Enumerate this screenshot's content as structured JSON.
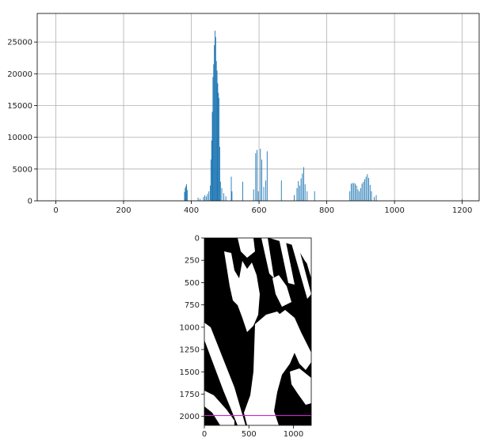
{
  "chart_data": [
    {
      "type": "histogram",
      "xlim": [
        -55,
        1250
      ],
      "ylim": [
        0,
        29500
      ],
      "grid": true,
      "bar_color": "#1f77b4",
      "x_ticks": [
        0,
        200,
        400,
        600,
        800,
        1000,
        1200
      ],
      "y_ticks": [
        0,
        5000,
        10000,
        15000,
        20000,
        25000
      ],
      "bins": [
        {
          "x": 380,
          "y": 1400
        },
        {
          "x": 382,
          "y": 2000
        },
        {
          "x": 384,
          "y": 2300
        },
        {
          "x": 386,
          "y": 2600
        },
        {
          "x": 388,
          "y": 1700
        },
        {
          "x": 420,
          "y": 500
        },
        {
          "x": 426,
          "y": 300
        },
        {
          "x": 436,
          "y": 600
        },
        {
          "x": 440,
          "y": 900
        },
        {
          "x": 444,
          "y": 700
        },
        {
          "x": 448,
          "y": 1100
        },
        {
          "x": 452,
          "y": 1500
        },
        {
          "x": 456,
          "y": 2400
        },
        {
          "x": 458,
          "y": 6500
        },
        {
          "x": 460,
          "y": 9500
        },
        {
          "x": 462,
          "y": 14000
        },
        {
          "x": 464,
          "y": 19500
        },
        {
          "x": 466,
          "y": 21500
        },
        {
          "x": 468,
          "y": 24500
        },
        {
          "x": 470,
          "y": 26800
        },
        {
          "x": 472,
          "y": 25800
        },
        {
          "x": 474,
          "y": 22000
        },
        {
          "x": 476,
          "y": 20500
        },
        {
          "x": 478,
          "y": 18500
        },
        {
          "x": 480,
          "y": 17000
        },
        {
          "x": 482,
          "y": 16200
        },
        {
          "x": 484,
          "y": 8500
        },
        {
          "x": 486,
          "y": 3000
        },
        {
          "x": 490,
          "y": 2000
        },
        {
          "x": 496,
          "y": 1200
        },
        {
          "x": 502,
          "y": 700
        },
        {
          "x": 518,
          "y": 3800
        },
        {
          "x": 520,
          "y": 1500
        },
        {
          "x": 552,
          "y": 3000
        },
        {
          "x": 584,
          "y": 1800
        },
        {
          "x": 590,
          "y": 7500
        },
        {
          "x": 594,
          "y": 8000
        },
        {
          "x": 598,
          "y": 1500
        },
        {
          "x": 604,
          "y": 8200
        },
        {
          "x": 608,
          "y": 6500
        },
        {
          "x": 614,
          "y": 2200
        },
        {
          "x": 620,
          "y": 3200
        },
        {
          "x": 624,
          "y": 7800
        },
        {
          "x": 666,
          "y": 3200
        },
        {
          "x": 704,
          "y": 900
        },
        {
          "x": 712,
          "y": 2000
        },
        {
          "x": 716,
          "y": 3100
        },
        {
          "x": 720,
          "y": 2400
        },
        {
          "x": 724,
          "y": 3500
        },
        {
          "x": 728,
          "y": 4300
        },
        {
          "x": 732,
          "y": 5300
        },
        {
          "x": 736,
          "y": 2600
        },
        {
          "x": 742,
          "y": 1500
        },
        {
          "x": 764,
          "y": 1500
        },
        {
          "x": 868,
          "y": 1500
        },
        {
          "x": 872,
          "y": 2700
        },
        {
          "x": 876,
          "y": 2800
        },
        {
          "x": 880,
          "y": 2800
        },
        {
          "x": 884,
          "y": 2700
        },
        {
          "x": 888,
          "y": 2400
        },
        {
          "x": 892,
          "y": 1800
        },
        {
          "x": 896,
          "y": 1500
        },
        {
          "x": 900,
          "y": 2000
        },
        {
          "x": 904,
          "y": 2700
        },
        {
          "x": 908,
          "y": 3000
        },
        {
          "x": 912,
          "y": 3400
        },
        {
          "x": 916,
          "y": 3800
        },
        {
          "x": 920,
          "y": 4200
        },
        {
          "x": 924,
          "y": 3600
        },
        {
          "x": 928,
          "y": 2500
        },
        {
          "x": 932,
          "y": 1500
        },
        {
          "x": 940,
          "y": 600
        },
        {
          "x": 946,
          "y": 900
        },
        {
          "x": 1200,
          "y": 300
        }
      ]
    },
    {
      "type": "image",
      "xlim": [
        0,
        1200
      ],
      "ylim": [
        2100,
        0
      ],
      "x_ticks": [
        0,
        500,
        1000
      ],
      "y_ticks": [
        0,
        250,
        500,
        750,
        1000,
        1250,
        1500,
        1750,
        2000
      ],
      "hline": {
        "y": 1990,
        "color": "#d11fd1"
      },
      "background_color": "#000000",
      "foreground_color": "#ffffff"
    }
  ]
}
